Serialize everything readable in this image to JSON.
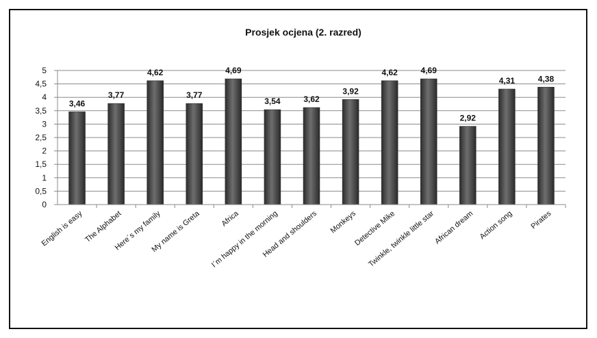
{
  "chart_data": {
    "type": "bar",
    "title": "Prosjek ocjena (2. razred)",
    "xlabel": "",
    "ylabel": "",
    "categories": [
      "English is easy",
      "The Alphabet",
      "Here´s my family",
      "My name is Greta",
      "Africa",
      "I´m happy in the morning",
      "Head and shoulders",
      "Monkeys",
      "Detective Mike",
      "Twinkle, twinkle little star",
      "African dream",
      "Action song",
      "Pirates"
    ],
    "values": [
      3.46,
      3.77,
      4.62,
      3.77,
      4.69,
      3.54,
      3.62,
      3.92,
      4.62,
      4.69,
      2.92,
      4.31,
      4.38
    ],
    "data_labels": [
      "3,46",
      "3,77",
      "4,62",
      "3,77",
      "4,69",
      "3,54",
      "3,62",
      "3,92",
      "4,62",
      "4,69",
      "2,92",
      "4,31",
      "4,38"
    ],
    "ylim": [
      0,
      5
    ],
    "yticks": [
      0,
      0.5,
      1,
      1.5,
      2,
      2.5,
      3,
      3.5,
      4,
      4.5,
      5
    ],
    "ytick_labels": [
      "0",
      "0,5",
      "1",
      "1,5",
      "2",
      "2,5",
      "3",
      "3,5",
      "4",
      "4,5",
      "5"
    ],
    "grid": true,
    "legend": "none",
    "bar_color": "#4a4a4a"
  }
}
